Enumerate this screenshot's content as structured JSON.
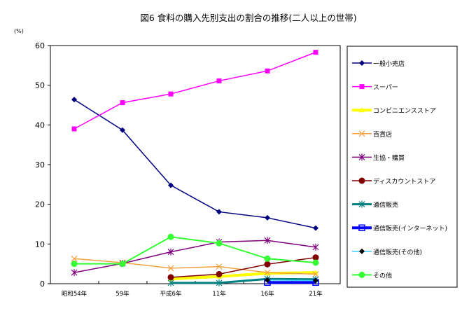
{
  "chart_data": {
    "type": "line",
    "title": "図6 食料の購入先別支出の割合の推移(二人以上の世帯)",
    "ylabel": "(%)",
    "xlabel": "",
    "ylim": [
      0,
      60
    ],
    "yticks": [
      0,
      10,
      20,
      30,
      40,
      50,
      60
    ],
    "categories": [
      "昭和54年",
      "59年",
      "平成6年",
      "11年",
      "16年",
      "21年"
    ],
    "legend_position": "right",
    "series": [
      {
        "name": "一般小売店",
        "color": "#000080",
        "marker": "diamond",
        "width": 1.5,
        "values": [
          46.4,
          38.7,
          24.8,
          18.1,
          16.6,
          14.0
        ]
      },
      {
        "name": "スーパー",
        "color": "#ff00ff",
        "marker": "square",
        "width": 1.5,
        "values": [
          39.0,
          45.6,
          47.8,
          51.1,
          53.6,
          58.3
        ]
      },
      {
        "name": "コンビニエンスストア",
        "color": "#ffff00",
        "marker": "triangle",
        "width": 4,
        "values": [
          null,
          null,
          1.2,
          1.8,
          2.6,
          2.8
        ]
      },
      {
        "name": "百貨店",
        "color": "#f5a040",
        "marker": "x",
        "width": 1.5,
        "values": [
          6.3,
          5.3,
          3.9,
          4.3,
          2.8,
          2.4
        ]
      },
      {
        "name": "生協・購買",
        "color": "#800080",
        "marker": "star",
        "width": 1.5,
        "values": [
          2.8,
          5.1,
          8.0,
          10.5,
          10.9,
          9.2
        ]
      },
      {
        "name": "ディスカウントストア",
        "color": "#800000",
        "marker": "circle",
        "width": 1.5,
        "values": [
          null,
          null,
          1.6,
          2.4,
          4.9,
          6.6
        ]
      },
      {
        "name": "通信販売",
        "color": "#008080",
        "marker": "star",
        "width": 3,
        "values": [
          null,
          null,
          0.2,
          0.2,
          1.2,
          1.1
        ]
      },
      {
        "name": "通信販売(インターネット)",
        "color": "#0000ff",
        "marker": "square-open",
        "width": 4,
        "values": [
          null,
          null,
          null,
          null,
          0.3,
          0.3
        ]
      },
      {
        "name": "通信販売(その他)",
        "color": "#33ccff",
        "marker": "diamond-black",
        "width": 1.5,
        "values": [
          null,
          null,
          null,
          null,
          0.9,
          0.8
        ]
      },
      {
        "name": "その他",
        "color": "#33ff33",
        "marker": "circle",
        "width": 2,
        "values": [
          5.0,
          5.0,
          11.8,
          10.2,
          6.3,
          5.3
        ]
      }
    ]
  }
}
